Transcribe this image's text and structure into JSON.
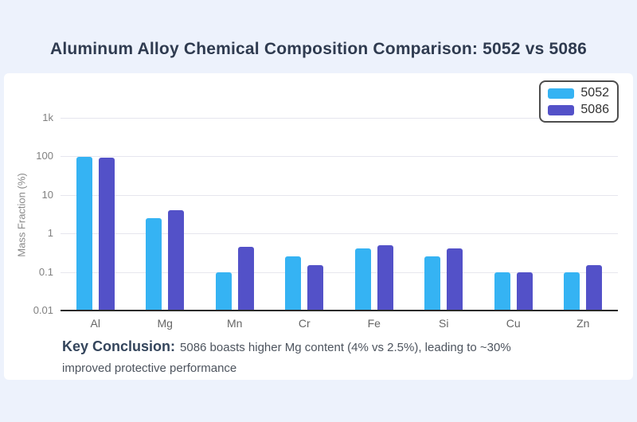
{
  "title": "Aluminum Alloy Chemical Composition Comparison: 5052 vs 5086",
  "colors": {
    "background": "#edf2fc",
    "panel": "#ffffff",
    "title_text": "#2f3b50",
    "series_5052": "#35b3f3",
    "series_5086": "#5351c8",
    "axis_line": "#2a2a2a",
    "gridline": "#e6e6ee",
    "tick_text": "#808080",
    "category_text": "#666666"
  },
  "chart_data": {
    "type": "bar",
    "title": "Aluminum Alloy Chemical Composition Comparison: 5052 vs 5086",
    "categories": [
      "Al",
      "Mg",
      "Mn",
      "Cr",
      "Fe",
      "Si",
      "Cu",
      "Zn"
    ],
    "series": [
      {
        "name": "5052",
        "color": "#35b3f3",
        "values": [
          97,
          2.5,
          0.1,
          0.25,
          0.4,
          0.25,
          0.1,
          0.1
        ]
      },
      {
        "name": "5086",
        "color": "#5351c8",
        "values": [
          93,
          4,
          0.45,
          0.15,
          0.5,
          0.4,
          0.1,
          0.15
        ]
      }
    ],
    "xlabel": "",
    "ylabel": "Mass Fraction (%)",
    "yscale": "log",
    "ylim": [
      0.01,
      1000
    ],
    "yticks": [
      1000,
      100,
      10,
      1,
      0.1,
      0.01
    ],
    "ytick_labels": [
      "1k",
      "100",
      "10",
      "1",
      "0.1",
      "0.01"
    ],
    "grid": true,
    "legend_position": "top-right",
    "legend_entries": [
      "5052",
      "5086"
    ]
  },
  "conclusion": {
    "label": "Key Conclusion:",
    "text": "5086 boasts higher Mg content (4% vs 2.5%), leading to ~30% improved protective performance"
  }
}
